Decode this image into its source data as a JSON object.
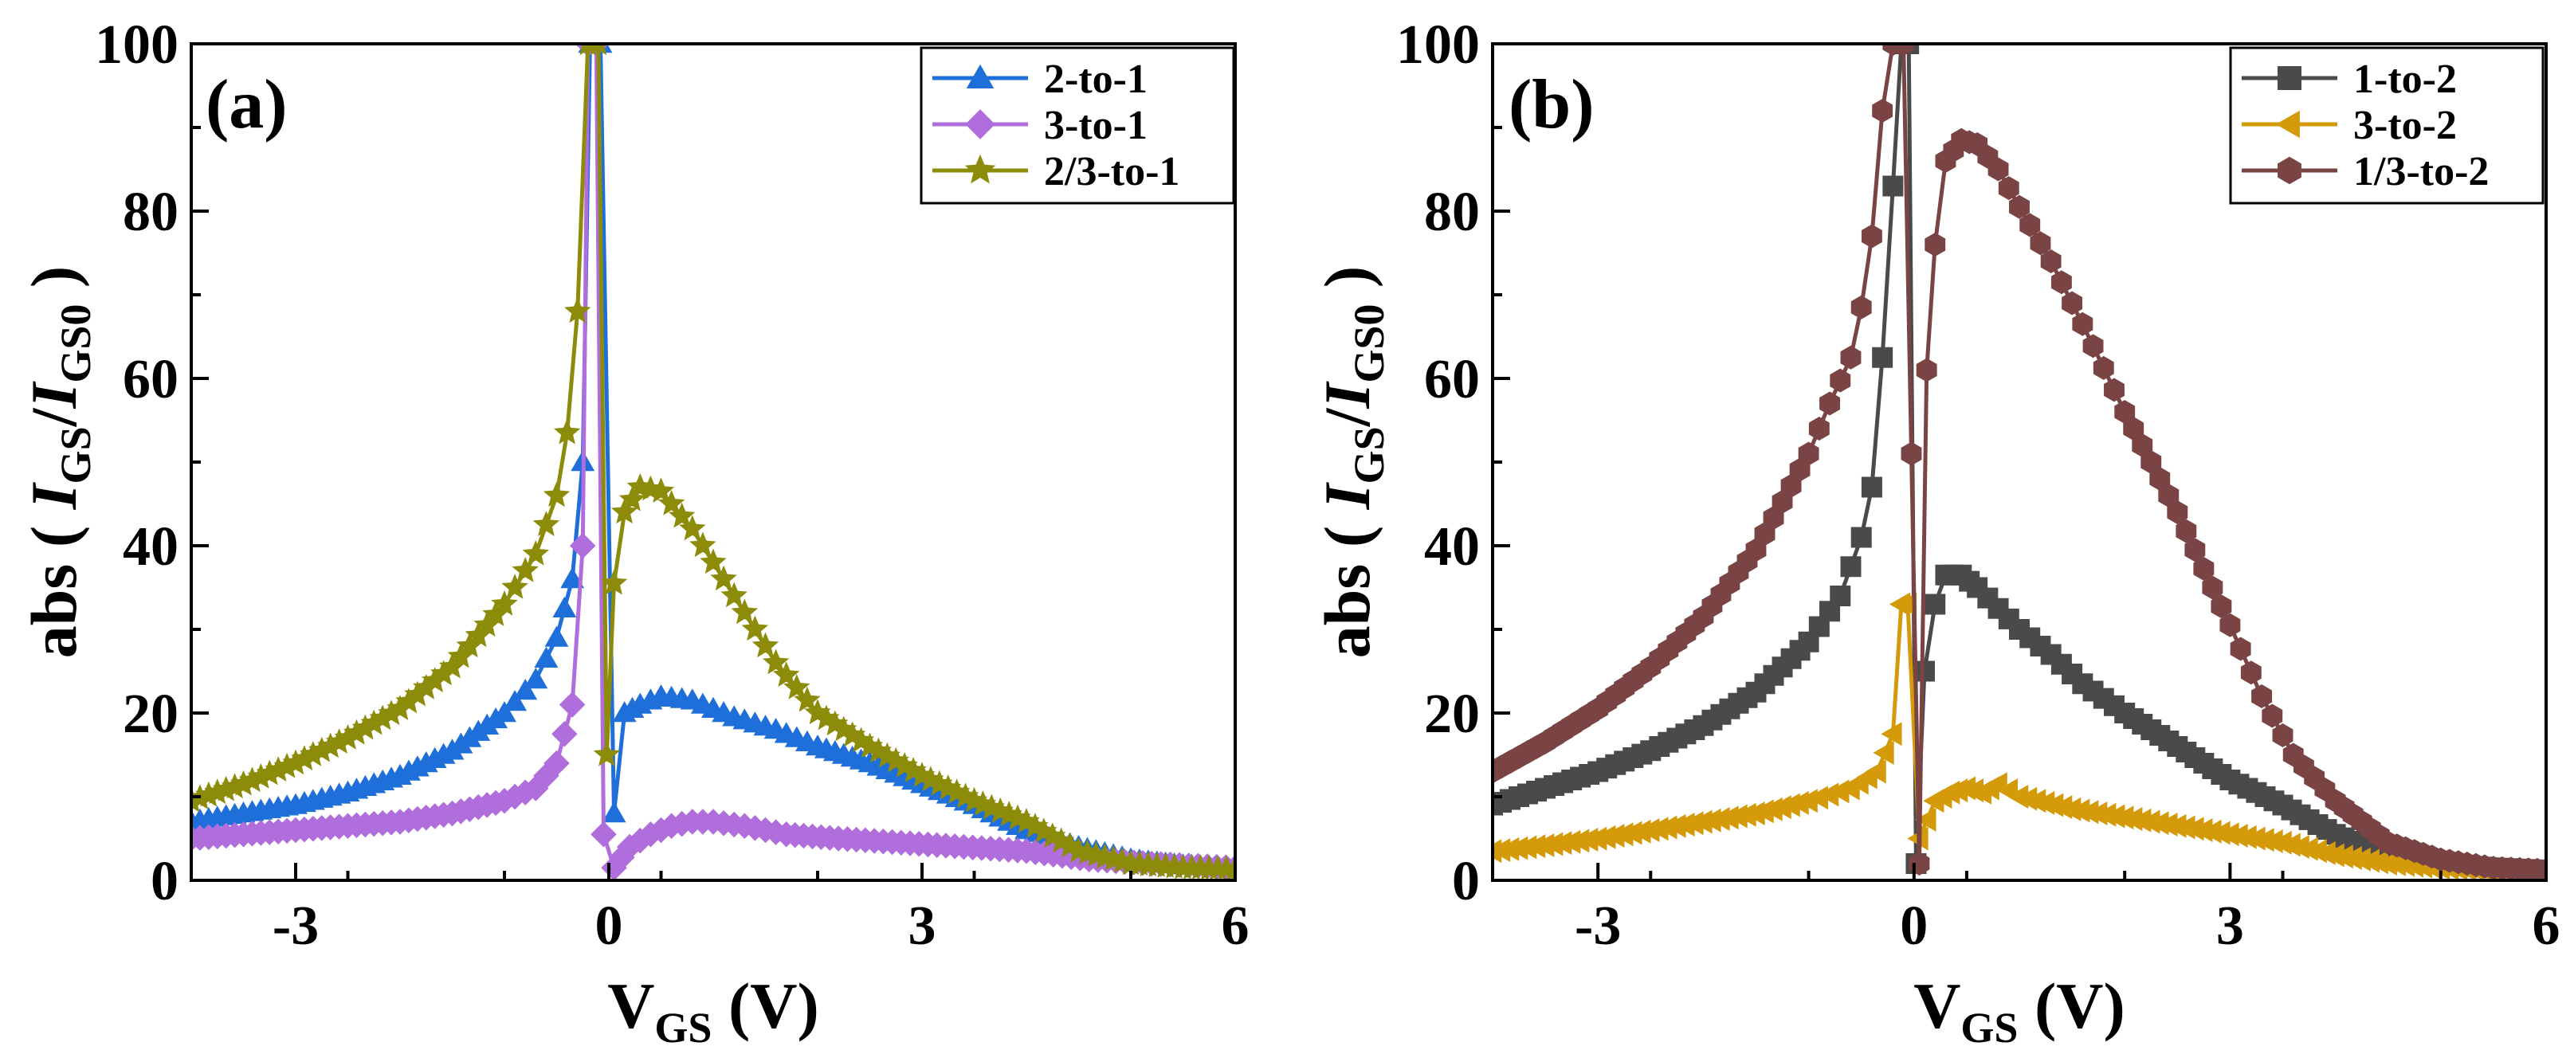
{
  "chart_data": [
    {
      "type": "line",
      "panel_label": "(a)",
      "xlabel": "VGS (V)",
      "xlabel_main": "V",
      "xlabel_sub": "GS",
      "xlabel_unit": " (V)",
      "ylabel": "abs ( IGS/IGS0 )",
      "ylabel_prefix": "abs ( ",
      "ylabel_i1": "I",
      "ylabel_sub1": "GS",
      "ylabel_slash": "/",
      "ylabel_i2": "I",
      "ylabel_sub2": "GS0",
      "ylabel_suffix": " )",
      "xlim": [
        -4,
        6
      ],
      "ylim": [
        0,
        100
      ],
      "xticks": [
        -3,
        0,
        3,
        6
      ],
      "xtick_labels": [
        "-3",
        "0",
        "3",
        "6"
      ],
      "yticks": [
        0,
        20,
        40,
        60,
        80,
        100
      ],
      "ytick_labels": [
        "0",
        "20",
        "40",
        "60",
        "80",
        "100"
      ],
      "legend_position": "top-right",
      "series": [
        {
          "name": "2-to-1",
          "color": "#1F6FDB",
          "marker": "triangle-up",
          "left_x": [
            -4.0,
            -3.5,
            -3.0,
            -2.5,
            -2.0,
            -1.5,
            -1.0,
            -0.7,
            -0.5,
            -0.35,
            -0.25,
            -0.18
          ],
          "left_y": [
            7.0,
            8.0,
            9.0,
            10.5,
            12.5,
            15.5,
            20.0,
            24.0,
            29.0,
            36.0,
            50.0,
            100.0
          ],
          "right_x": [
            -0.08,
            0.05,
            0.15,
            0.3,
            0.5,
            0.8,
            1.2,
            1.6,
            2.0,
            2.5,
            3.0,
            3.5,
            4.0,
            4.5,
            5.0,
            5.5,
            6.0
          ],
          "right_y": [
            100.0,
            8.0,
            20.0,
            21.0,
            22.0,
            21.5,
            19.5,
            18.0,
            16.0,
            14.0,
            11.5,
            9.0,
            6.0,
            4.0,
            2.5,
            1.8,
            1.5
          ]
        },
        {
          "name": "3-to-1",
          "color": "#B06EDC",
          "marker": "diamond",
          "left_x": [
            -4.0,
            -3.5,
            -3.0,
            -2.5,
            -2.0,
            -1.5,
            -1.0,
            -0.7,
            -0.5,
            -0.35,
            -0.25,
            -0.2
          ],
          "left_y": [
            5.0,
            5.5,
            6.0,
            6.5,
            7.0,
            8.0,
            9.5,
            11.0,
            14.0,
            21.0,
            40.0,
            100.0
          ],
          "right_x": [
            -0.12,
            -0.05,
            0.05,
            0.2,
            0.4,
            0.6,
            0.8,
            1.0,
            1.3,
            1.7,
            2.2,
            2.8,
            3.4,
            4.0,
            4.6,
            5.2,
            6.0
          ],
          "right_y": [
            100.0,
            5.5,
            1.5,
            4.0,
            5.5,
            6.5,
            7.0,
            7.0,
            6.5,
            5.5,
            5.0,
            4.5,
            4.0,
            3.5,
            2.5,
            2.0,
            1.5
          ]
        },
        {
          "name": "2/3-to-1",
          "color": "#8C8C0A",
          "marker": "star",
          "left_x": [
            -4.0,
            -3.5,
            -3.0,
            -2.5,
            -2.0,
            -1.5,
            -1.0,
            -0.7,
            -0.5,
            -0.4,
            -0.3,
            -0.2
          ],
          "left_y": [
            9.5,
            11.5,
            14.0,
            17.0,
            20.5,
            25.5,
            33.0,
            39.0,
            46.0,
            53.5,
            68.0,
            100.0
          ],
          "right_x": [
            -0.1,
            -0.02,
            0.05,
            0.15,
            0.3,
            0.5,
            0.8,
            1.2,
            1.6,
            2.0,
            2.5,
            3.0,
            3.5,
            4.0,
            4.5,
            5.0,
            5.5,
            6.0
          ],
          "right_y": [
            100.0,
            15.0,
            35.5,
            44.0,
            47.0,
            46.5,
            42.0,
            34.0,
            26.0,
            20.0,
            16.0,
            12.5,
            9.5,
            7.0,
            3.5,
            2.0,
            1.5,
            1.3
          ]
        }
      ]
    },
    {
      "type": "line",
      "panel_label": "(b)",
      "xlabel": "VGS (V)",
      "xlabel_main": "V",
      "xlabel_sub": "GS",
      "xlabel_unit": " (V)",
      "ylabel": "abs ( IGS/IGS0 )",
      "ylabel_prefix": "abs ( ",
      "ylabel_i1": "I",
      "ylabel_sub1": "GS",
      "ylabel_slash": "/",
      "ylabel_i2": "I",
      "ylabel_sub2": "GS0",
      "ylabel_suffix": " )",
      "xlim": [
        -4,
        6
      ],
      "ylim": [
        0,
        100
      ],
      "xticks": [
        -3,
        0,
        3,
        6
      ],
      "xtick_labels": [
        "-3",
        "0",
        "3",
        "6"
      ],
      "yticks": [
        0,
        20,
        40,
        60,
        80,
        100
      ],
      "ytick_labels": [
        "0",
        "20",
        "40",
        "60",
        "80",
        "100"
      ],
      "legend_position": "top-right",
      "series": [
        {
          "name": "1-to-2",
          "color": "#4A4A4A",
          "marker": "square",
          "left_x": [
            -4.0,
            -3.5,
            -3.0,
            -2.5,
            -2.0,
            -1.5,
            -1.0,
            -0.7,
            -0.5,
            -0.4,
            -0.3,
            -0.2,
            -0.12
          ],
          "left_y": [
            9.0,
            11.0,
            13.0,
            15.5,
            18.5,
            22.5,
            28.5,
            34.0,
            41.0,
            47.0,
            62.5,
            83.0,
            100.0
          ],
          "right_x": [
            -0.05,
            0.02,
            0.1,
            0.2,
            0.3,
            0.45,
            0.6,
            0.8,
            1.0,
            1.3,
            1.6,
            2.0,
            2.5,
            3.0,
            3.5,
            4.0,
            4.5,
            5.0,
            5.5,
            6.0
          ],
          "right_y": [
            100.0,
            2.0,
            25.0,
            33.0,
            36.5,
            36.5,
            35.0,
            32.5,
            30.0,
            27.0,
            23.5,
            20.0,
            16.0,
            12.0,
            9.0,
            5.5,
            3.0,
            2.0,
            1.5,
            1.2
          ]
        },
        {
          "name": "3-to-2",
          "color": "#D49A0A",
          "marker": "triangle-left",
          "left_x": [
            -4.0,
            -3.5,
            -3.0,
            -2.5,
            -2.0,
            -1.5,
            -1.0,
            -0.6,
            -0.35,
            -0.2,
            -0.12
          ],
          "left_y": [
            3.5,
            4.2,
            5.0,
            6.0,
            7.0,
            8.0,
            9.5,
            11.0,
            13.0,
            17.5,
            33.0
          ],
          "right_x": [
            -0.06,
            0.05,
            0.2,
            0.35,
            0.5,
            0.65,
            0.8,
            1.0,
            1.5,
            2.0,
            2.5,
            3.0,
            3.5,
            4.0,
            4.5,
            5.0,
            5.5,
            6.0
          ],
          "right_y": [
            33.0,
            5.0,
            9.5,
            10.5,
            11.0,
            10.5,
            11.5,
            10.0,
            8.5,
            7.5,
            6.5,
            5.5,
            4.5,
            3.0,
            2.0,
            1.5,
            1.2,
            1.0
          ]
        },
        {
          "name": "1/3-to-2",
          "color": "#7A4444",
          "marker": "hexagon",
          "left_x": [
            -4.0,
            -3.5,
            -3.0,
            -2.5,
            -2.0,
            -1.5,
            -1.0,
            -0.8,
            -0.6,
            -0.5,
            -0.4,
            -0.3,
            -0.2
          ],
          "left_y": [
            13.0,
            16.5,
            20.5,
            25.5,
            31.5,
            39.5,
            51.0,
            57.0,
            62.5,
            68.5,
            77.0,
            92.0,
            100.0
          ],
          "right_x": [
            -0.1,
            0.05,
            0.12,
            0.2,
            0.3,
            0.45,
            0.6,
            0.8,
            1.0,
            1.3,
            1.6,
            2.0,
            2.5,
            3.0,
            3.3,
            3.6,
            4.0,
            4.5,
            5.0,
            5.5,
            6.0
          ],
          "right_y": [
            100.0,
            2.0,
            61.0,
            76.0,
            86.0,
            88.5,
            88.0,
            85.0,
            80.5,
            74.0,
            66.5,
            56.0,
            44.0,
            30.5,
            22.0,
            15.0,
            9.5,
            4.5,
            2.5,
            1.5,
            1.2
          ]
        }
      ]
    }
  ]
}
